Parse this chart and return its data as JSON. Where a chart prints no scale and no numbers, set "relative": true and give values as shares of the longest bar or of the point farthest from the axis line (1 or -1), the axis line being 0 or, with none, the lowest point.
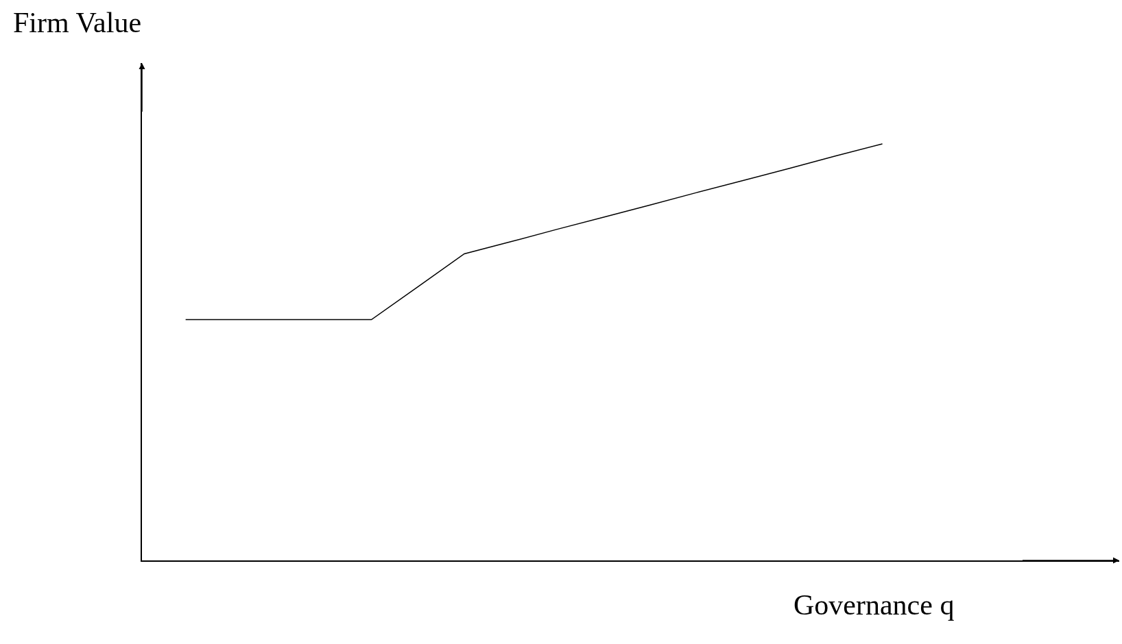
{
  "chart_data": {
    "type": "line",
    "relative": true,
    "ylabel": "Firm Value",
    "xlabel": "Governance q",
    "marker": "none",
    "line_style": "solid",
    "categories": [
      null,
      null,
      null,
      null,
      null,
      null,
      null,
      null,
      null,
      null,
      null,
      null,
      null,
      null,
      null,
      null
    ],
    "series": [
      {
        "color": "#000000",
        "values": [
          0.578,
          0.578,
          0.578,
          0.578,
          0.578,
          0.657,
          0.736,
          0.765,
          0.795,
          0.824,
          0.853,
          0.883,
          0.912,
          0.941,
          0.971,
          1
        ]
      }
    ]
  }
}
